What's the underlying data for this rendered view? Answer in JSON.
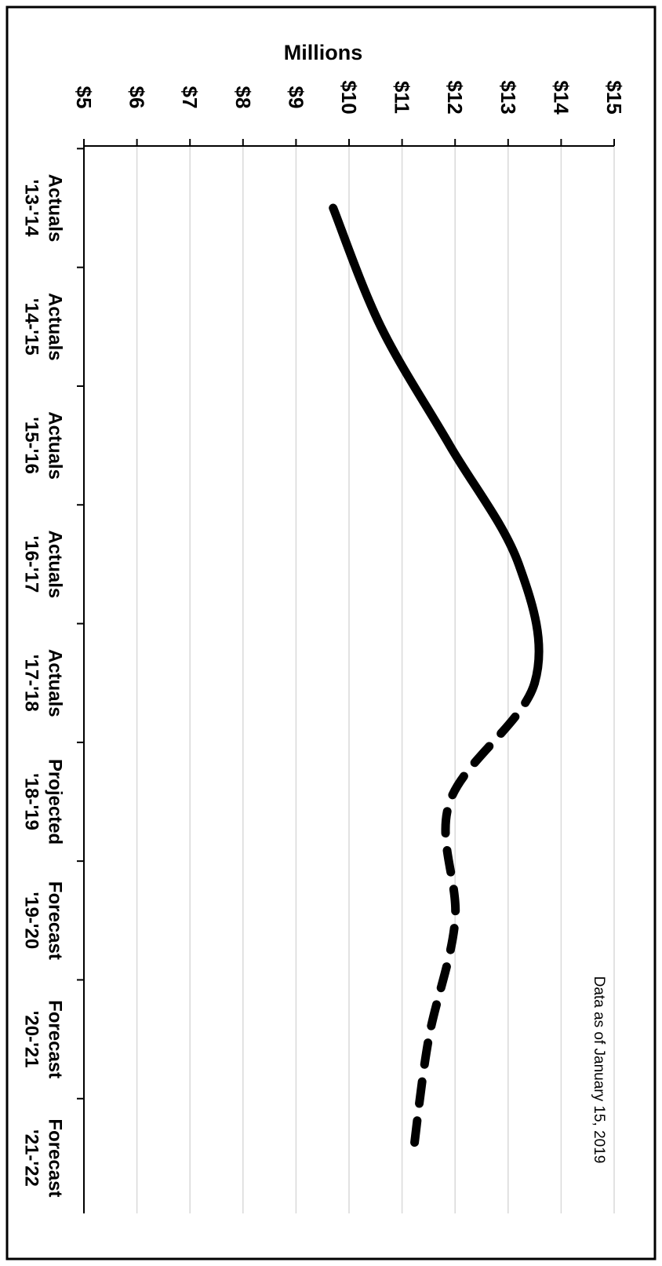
{
  "chart_data": {
    "type": "line",
    "orientation": "rotated-90-clockwise",
    "ylabel": "Millions",
    "y_ticks": [
      "$5",
      "$6",
      "$7",
      "$8",
      "$9",
      "$10",
      "$11",
      "$12",
      "$13",
      "$14",
      "$15"
    ],
    "ylim": [
      5,
      15
    ],
    "grid": true,
    "annotation": "Data as of January 15, 2019",
    "categories": [
      {
        "type": "Actuals",
        "period": "'13-'14"
      },
      {
        "type": "Actuals",
        "period": "'14-'15"
      },
      {
        "type": "Actuals",
        "period": "'15-'16"
      },
      {
        "type": "Actuals",
        "period": "'16-'17"
      },
      {
        "type": "Actuals",
        "period": "'17-'18"
      },
      {
        "type": "Projected",
        "period": "'18-'19"
      },
      {
        "type": "Forecast",
        "period": "'19-'20"
      },
      {
        "type": "Forecast",
        "period": "'20-'21"
      },
      {
        "type": "Forecast",
        "period": "'21-'22"
      }
    ],
    "values": [
      9.7,
      10.6,
      11.9,
      13.2,
      13.5,
      11.9,
      12.0,
      11.5,
      11.2
    ],
    "series": [
      {
        "style": "solid",
        "from_index": 0,
        "to_index": 4
      },
      {
        "style": "dashed",
        "from_index": 4,
        "to_index": 8
      }
    ],
    "colors": {
      "line": "#000000",
      "grid": "#d9d9d9",
      "axis": "#000000",
      "border": "#000000"
    }
  }
}
